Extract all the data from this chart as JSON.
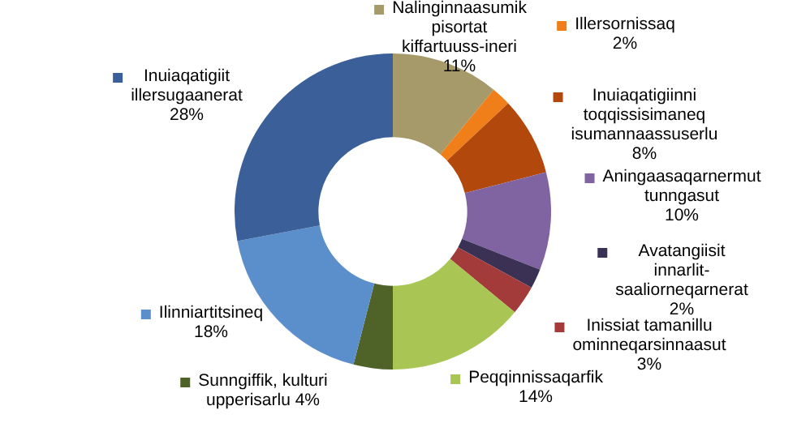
{
  "chart_data": {
    "type": "donut",
    "categories": [
      "Nalinginnaasumik pisortat kiffartuuss-ineri",
      "Illersornissaq",
      "Inuiaqatigiinni toqqissisimaneq isumannaassuserlu",
      "Aningaasaqarnermut tunngasut",
      "Avatangiisit innarlit-saaliorneqarnerat",
      "Inissiat tamanillu ominneqarsinnaasut",
      "Peqqinnissaqarfik",
      "Sunngiffik, kulturi upperisarlu",
      "Ilinniartitsineq",
      "Inuiaqatigiit illersugaanerat"
    ],
    "values": [
      11,
      2,
      8,
      10,
      2,
      3,
      14,
      4,
      18,
      28
    ],
    "colors": [
      "#a69a6a",
      "#f07f1a",
      "#b3480c",
      "#8064a2",
      "#3a3154",
      "#a33b3b",
      "#a9c553",
      "#4f6228",
      "#5b8fcc",
      "#3b5f98"
    ],
    "value_labels": [
      "11%",
      "2%",
      "8%",
      "10%",
      "2%",
      "3%",
      "14%",
      "4%",
      "18%",
      "28%"
    ],
    "legend": "right"
  }
}
